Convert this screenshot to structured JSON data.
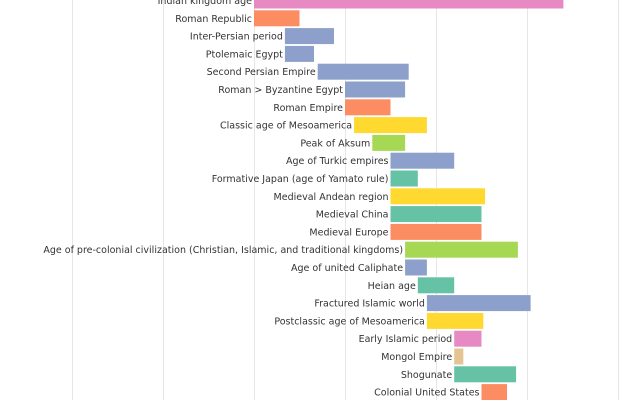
{
  "chart_data": {
    "type": "bar",
    "orientation": "horizontal",
    "x_axis": {
      "unit": "year",
      "visible_range": [
        -1550,
        2030
      ],
      "gridlines": [
        -1500,
        -1000,
        -500,
        0,
        500,
        1000,
        1500,
        2000
      ],
      "tick_labels_visible": false
    },
    "grid": true,
    "legend": "none",
    "bars": [
      {
        "label": "Indian kingdom age",
        "start": -500,
        "end": 1200,
        "color": "#e78ac3"
      },
      {
        "label": "Roman Republic",
        "start": -500,
        "end": -250,
        "color": "#fc8d62"
      },
      {
        "label": "Inter-Persian period",
        "start": -330,
        "end": -60,
        "color": "#8da0cb"
      },
      {
        "label": "Ptolemaic Egypt",
        "start": -330,
        "end": -170,
        "color": "#8da0cb"
      },
      {
        "label": "Second Persian Empire",
        "start": -150,
        "end": 350,
        "color": "#8da0cb"
      },
      {
        "label": "Roman > Byzantine Egypt",
        "start": 0,
        "end": 330,
        "color": "#8da0cb"
      },
      {
        "label": "Roman Empire",
        "start": 0,
        "end": 250,
        "color": "#fc8d62"
      },
      {
        "label": "Classic age of Mesoamerica",
        "start": 50,
        "end": 450,
        "color": "#ffd92f"
      },
      {
        "label": "Peak of Aksum",
        "start": 150,
        "end": 330,
        "color": "#a6d854"
      },
      {
        "label": "Age of Turkic empires",
        "start": 250,
        "end": 600,
        "color": "#8da0cb"
      },
      {
        "label": "Formative Japan (age of Yamato rule)",
        "start": 250,
        "end": 400,
        "color": "#66c2a5"
      },
      {
        "label": "Medieval Andean region",
        "start": 250,
        "end": 770,
        "color": "#ffd92f"
      },
      {
        "label": "Medieval China",
        "start": 250,
        "end": 750,
        "color": "#66c2a5"
      },
      {
        "label": "Medieval Europe",
        "start": 250,
        "end": 750,
        "color": "#fc8d62"
      },
      {
        "label": "Age of pre-colonial civilization (Christian, Islamic, and traditional kingdoms)",
        "start": 330,
        "end": 950,
        "color": "#a6d854"
      },
      {
        "label": "Age of united Caliphate",
        "start": 330,
        "end": 450,
        "color": "#8da0cb"
      },
      {
        "label": "Heian age",
        "start": 400,
        "end": 600,
        "color": "#66c2a5"
      },
      {
        "label": "Fractured Islamic world",
        "start": 450,
        "end": 1020,
        "color": "#8da0cb"
      },
      {
        "label": "Postclassic age of Mesoamerica",
        "start": 450,
        "end": 760,
        "color": "#ffd92f"
      },
      {
        "label": "Early Islamic period",
        "start": 600,
        "end": 750,
        "color": "#e78ac3"
      },
      {
        "label": "Mongol Empire",
        "start": 600,
        "end": 650,
        "color": "#e5c494"
      },
      {
        "label": "Shogunate",
        "start": 600,
        "end": 940,
        "color": "#66c2a5"
      },
      {
        "label": "Colonial United States",
        "start": 750,
        "end": 890,
        "color": "#fc8d62"
      }
    ]
  }
}
